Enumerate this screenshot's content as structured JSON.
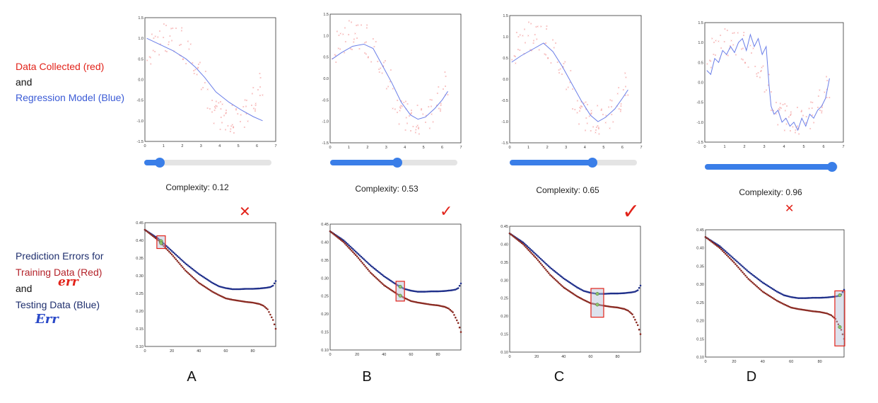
{
  "left_labels": {
    "top": [
      {
        "text": "Data Collected (red)",
        "color": "#e2231a"
      },
      {
        "text": "and",
        "color": "#111111"
      },
      {
        "text": "Regression Model (Blue)",
        "color": "#3b5bd6"
      }
    ],
    "bottom": [
      {
        "text": "Prediction Errors for",
        "color": "#1f2f6e"
      },
      {
        "text": "Training Data (Red)",
        "color": "#b4232a"
      },
      {
        "text": "and",
        "color": "#111111"
      },
      {
        "text": "Testing Data (Blue)",
        "color": "#1f2f6e"
      }
    ],
    "handwritten_err": "err",
    "handwritten_Err": "Err"
  },
  "panels": [
    {
      "letter": "A",
      "complexity_label": "Complexity: 0.12",
      "complexity": 0.12,
      "mark": "✕",
      "mark_icon": "cross-icon",
      "highlight_x": 12
    },
    {
      "letter": "B",
      "complexity_label": "Complexity: 0.53",
      "complexity": 0.53,
      "mark": "✓",
      "mark_icon": "check-icon",
      "highlight_x": 52
    },
    {
      "letter": "C",
      "complexity_label": "Complexity: 0.65",
      "complexity": 0.65,
      "mark": "✓",
      "mark_icon": "check-icon",
      "highlight_x": 65
    },
    {
      "letter": "D",
      "complexity_label": "Complexity: 0.96",
      "complexity": 0.96,
      "mark": "✕",
      "mark_icon": "cross-icon",
      "highlight_x": 94
    }
  ],
  "chart_data": [
    {
      "type": "scatter",
      "description_role": "regression",
      "xlim": [
        0,
        7
      ],
      "ylim": [
        -1.5,
        1.5
      ],
      "xticks": [
        "0",
        "1",
        "2",
        "3",
        "4",
        "5",
        "6",
        "7"
      ],
      "yticks": [
        "1.5",
        "1.0",
        "0.5",
        "0.0",
        "-0.5",
        "-1.0",
        "-1.5"
      ],
      "series": [
        {
          "role": "data",
          "color": "#f08080"
        },
        {
          "role": "model",
          "color": "#6a7ee8",
          "panels": [
            {
              "x": [
                0.1,
                0.8,
                1.5,
                2.2,
                2.7,
                3.2,
                3.8,
                4.5,
                5.2,
                5.8,
                6.3
              ],
              "y": [
                1.0,
                0.85,
                0.7,
                0.5,
                0.3,
                0.05,
                -0.3,
                -0.55,
                -0.75,
                -0.9,
                -1.0
              ]
            },
            {
              "x": [
                0.1,
                0.6,
                1.2,
                1.8,
                2.3,
                2.8,
                3.3,
                3.8,
                4.3,
                4.7,
                5.1,
                5.6,
                6.0,
                6.3
              ],
              "y": [
                0.45,
                0.6,
                0.75,
                0.8,
                0.7,
                0.3,
                -0.1,
                -0.55,
                -0.85,
                -0.95,
                -0.9,
                -0.7,
                -0.5,
                -0.3
              ]
            },
            {
              "x": [
                0.1,
                0.6,
                1.2,
                1.8,
                2.3,
                2.8,
                3.3,
                3.8,
                4.3,
                4.7,
                5.1,
                5.6,
                6.0,
                6.3
              ],
              "y": [
                0.4,
                0.55,
                0.7,
                0.85,
                0.65,
                0.3,
                -0.1,
                -0.5,
                -0.85,
                -1.0,
                -0.9,
                -0.7,
                -0.45,
                -0.25
              ]
            },
            {
              "x": [
                0.1,
                0.3,
                0.5,
                0.7,
                0.9,
                1.1,
                1.3,
                1.5,
                1.7,
                1.9,
                2.1,
                2.3,
                2.5,
                2.7,
                2.9,
                3.1,
                3.25,
                3.35,
                3.5,
                3.7,
                3.9,
                4.1,
                4.3,
                4.5,
                4.7,
                4.9,
                5.1,
                5.3,
                5.5,
                5.7,
                5.9,
                6.1,
                6.3
              ],
              "y": [
                0.3,
                0.2,
                0.6,
                0.5,
                0.8,
                0.7,
                0.9,
                0.75,
                1.0,
                1.1,
                0.8,
                1.2,
                0.9,
                1.1,
                0.7,
                0.9,
                -0.1,
                -0.6,
                -0.8,
                -0.7,
                -1.0,
                -0.9,
                -1.1,
                -1.0,
                -1.2,
                -0.9,
                -1.1,
                -0.8,
                -0.9,
                -0.7,
                -0.6,
                -0.4,
                0.1
              ]
            }
          ]
        }
      ]
    },
    {
      "type": "scatter",
      "description_role": "errors",
      "xlim": [
        0,
        97
      ],
      "ylim": [
        0.1,
        0.45
      ],
      "xticks": [
        "0",
        "20",
        "40",
        "60",
        "80"
      ],
      "yticks": [
        "0.45",
        "0.40",
        "0.35",
        "0.30",
        "0.25",
        "0.20",
        "0.15",
        "0.10"
      ],
      "series": [
        {
          "name": "Testing Data (Blue)",
          "color": "#1f2f8a",
          "x": [
            0,
            10,
            20,
            30,
            40,
            50,
            55,
            60,
            65,
            70,
            75,
            80,
            85,
            90,
            93,
            95,
            97
          ],
          "y": [
            0.43,
            0.405,
            0.37,
            0.335,
            0.305,
            0.28,
            0.27,
            0.265,
            0.262,
            0.262,
            0.263,
            0.263,
            0.264,
            0.266,
            0.268,
            0.272,
            0.285
          ]
        },
        {
          "name": "Training Data (Red)",
          "color": "#8a2a22",
          "x": [
            0,
            10,
            20,
            30,
            40,
            50,
            55,
            60,
            65,
            70,
            75,
            80,
            85,
            88,
            91,
            93,
            95,
            97
          ],
          "y": [
            0.43,
            0.4,
            0.36,
            0.315,
            0.28,
            0.255,
            0.245,
            0.236,
            0.232,
            0.229,
            0.226,
            0.224,
            0.22,
            0.215,
            0.205,
            0.19,
            0.175,
            0.15
          ]
        }
      ]
    }
  ]
}
